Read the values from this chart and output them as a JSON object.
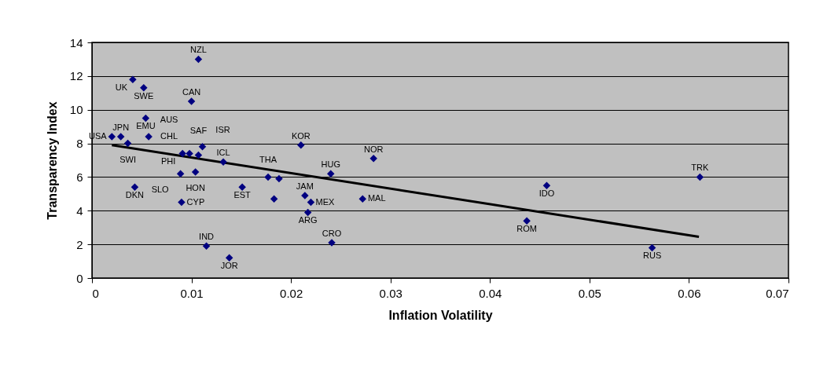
{
  "chart_data": {
    "type": "scatter",
    "xlabel": "Inflation Volatility",
    "ylabel": "Transparency Index",
    "xlim": [
      0,
      0.07
    ],
    "xticks": [
      0,
      0.01,
      0.02,
      0.03,
      0.04,
      0.05,
      0.06,
      0.07
    ],
    "ylim": [
      0,
      14
    ],
    "yticks": [
      0,
      2,
      4,
      6,
      8,
      10,
      12,
      14
    ],
    "grid": "y",
    "marker": "diamond",
    "series": [
      {
        "color": "#000080",
        "x": [
          0.0107,
          0.0041,
          0.0052,
          0.01,
          0.0054,
          0.0057,
          0.002,
          0.0029,
          0.0036,
          0.0111,
          0.0091,
          0.0098,
          0.0107,
          0.0132,
          0.0089,
          0.0104,
          0.0043,
          0.009,
          0.0115,
          0.0138,
          0.0151,
          0.021,
          0.0283,
          0.024,
          0.0177,
          0.0188,
          0.0183,
          0.0214,
          0.022,
          0.0217,
          0.0241,
          0.0272,
          0.0457,
          0.0437,
          0.0563,
          0.0611
        ],
        "values": [
          13.0,
          11.8,
          11.3,
          10.5,
          9.5,
          8.4,
          8.4,
          8.4,
          8.0,
          7.8,
          7.4,
          7.4,
          7.3,
          6.9,
          6.2,
          6.3,
          5.4,
          4.5,
          1.9,
          1.2,
          5.4,
          7.9,
          7.1,
          6.2,
          6.0,
          5.9,
          4.7,
          4.9,
          4.5,
          3.9,
          2.1,
          4.7,
          5.5,
          3.4,
          1.8,
          6.0
        ]
      },
      {
        "type": "line",
        "marker": "none",
        "color": "#000000",
        "x": [
          0.002,
          0.061
        ],
        "values": [
          7.9,
          2.45
        ]
      }
    ],
    "annotations": [
      {
        "text": "NZL",
        "x": 0.0107,
        "y": 13.0
      },
      {
        "text": "UK",
        "x": 0.0041,
        "y": 11.8
      },
      {
        "text": "SWE",
        "x": 0.0052,
        "y": 11.3
      },
      {
        "text": "CAN",
        "x": 0.01,
        "y": 10.5
      },
      {
        "text": "EMU",
        "x": 0.0054,
        "y": 9.5
      },
      {
        "text": "AUS",
        "x": 0.0057,
        "y": 8.4
      },
      {
        "text": "USA",
        "x": 0.002,
        "y": 8.4
      },
      {
        "text": "JPN",
        "x": 0.0029,
        "y": 8.4
      },
      {
        "text": "SWI",
        "x": 0.0036,
        "y": 8.0
      },
      {
        "text": "ISR",
        "x": 0.0111,
        "y": 7.8
      },
      {
        "text": "PHI",
        "x": 0.0091,
        "y": 7.4
      },
      {
        "text": "CHL",
        "x": 0.0098,
        "y": 7.4
      },
      {
        "text": "SAF",
        "x": 0.0107,
        "y": 7.3
      },
      {
        "text": "ICL",
        "x": 0.0132,
        "y": 6.9
      },
      {
        "text": "SLO",
        "x": 0.0089,
        "y": 6.2
      },
      {
        "text": "HON",
        "x": 0.0104,
        "y": 6.3
      },
      {
        "text": "DKN",
        "x": 0.0043,
        "y": 5.4
      },
      {
        "text": "CYP",
        "x": 0.009,
        "y": 4.5
      },
      {
        "text": "IND",
        "x": 0.0115,
        "y": 1.9
      },
      {
        "text": "JOR",
        "x": 0.0138,
        "y": 1.2
      },
      {
        "text": "EST",
        "x": 0.0151,
        "y": 5.4
      },
      {
        "text": "KOR",
        "x": 0.021,
        "y": 7.9
      },
      {
        "text": "NOR",
        "x": 0.0283,
        "y": 7.1
      },
      {
        "text": "HUG",
        "x": 0.024,
        "y": 6.2
      },
      {
        "text": "THA",
        "x": 0.0177,
        "y": 6.0
      },
      {
        "text": "JAM",
        "x": 0.0214,
        "y": 4.9
      },
      {
        "text": "MEX",
        "x": 0.022,
        "y": 4.5
      },
      {
        "text": "ARG",
        "x": 0.0217,
        "y": 3.9
      },
      {
        "text": "CRO",
        "x": 0.0241,
        "y": 2.1
      },
      {
        "text": "MAL",
        "x": 0.0272,
        "y": 4.7
      },
      {
        "text": "IDO",
        "x": 0.0457,
        "y": 5.5
      },
      {
        "text": "ROM",
        "x": 0.0437,
        "y": 3.4
      },
      {
        "text": "RUS",
        "x": 0.0563,
        "y": 1.8
      },
      {
        "text": "TRK",
        "x": 0.0611,
        "y": 6.0
      }
    ]
  }
}
